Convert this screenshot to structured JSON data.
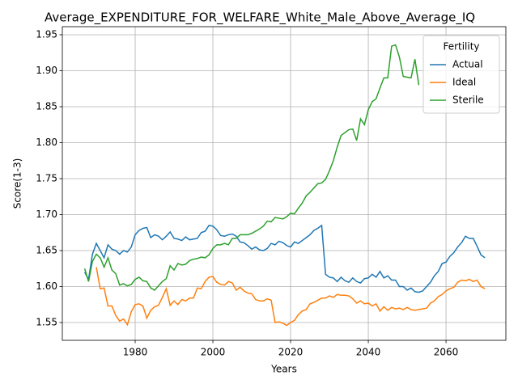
{
  "chart_data": {
    "type": "line",
    "title": "Average_EXPENDITURE_FOR_WELFARE_White_Male_Above_Average_IQ",
    "x_label": "Years",
    "y_label": "Score(1-3)",
    "x": [
      1967,
      1968,
      1969,
      1970,
      1971,
      1972,
      1973,
      1974,
      1975,
      1976,
      1977,
      1978,
      1979,
      1980,
      1981,
      1982,
      1983,
      1984,
      1985,
      1986,
      1987,
      1988,
      1989,
      1990,
      1991,
      1992,
      1993,
      1994,
      1995,
      1996,
      1997,
      1998,
      1999,
      2000,
      2001,
      2002,
      2003,
      2004,
      2005,
      2006,
      2007,
      2008,
      2009,
      2010,
      2011,
      2012,
      2013,
      2014,
      2015,
      2016,
      2017,
      2018,
      2019,
      2020,
      2021,
      2022,
      2023,
      2024,
      2025,
      2026,
      2027,
      2028,
      2029,
      2030,
      2031,
      2032,
      2033,
      2034,
      2035,
      2036,
      2037,
      2038,
      2039,
      2040,
      2041,
      2042,
      2043,
      2044,
      2045,
      2046,
      2047,
      2048,
      2049,
      2050,
      2051,
      2052,
      2053,
      2054,
      2055,
      2056,
      2057,
      2058,
      2059,
      2060,
      2061,
      2062,
      2063,
      2064,
      2065,
      2066,
      2067,
      2068,
      2069,
      2070
    ],
    "series": [
      {
        "name": "Actual",
        "color": "#1f77b4",
        "values": [
          1.62,
          1.61,
          1.645,
          1.66,
          1.65,
          1.64,
          1.658,
          1.652,
          1.65,
          1.645,
          1.65,
          1.648,
          1.655,
          1.672,
          1.678,
          1.681,
          1.682,
          1.668,
          1.672,
          1.67,
          1.665,
          1.67,
          1.676,
          1.667,
          1.666,
          1.664,
          1.669,
          1.665,
          1.666,
          1.667,
          1.675,
          1.677,
          1.685,
          1.684,
          1.679,
          1.671,
          1.67,
          1.672,
          1.673,
          1.67,
          1.662,
          1.661,
          1.657,
          1.652,
          1.655,
          1.651,
          1.65,
          1.653,
          1.66,
          1.658,
          1.663,
          1.661,
          1.657,
          1.655,
          1.662,
          1.66,
          1.664,
          1.668,
          1.672,
          1.678,
          1.681,
          1.685,
          1.617,
          1.613,
          1.612,
          1.607,
          1.613,
          1.608,
          1.606,
          1.612,
          1.607,
          1.605,
          1.611,
          1.612,
          1.617,
          1.613,
          1.621,
          1.612,
          1.615,
          1.609,
          1.609,
          1.6,
          1.6,
          1.595,
          1.598,
          1.593,
          1.592,
          1.594,
          1.6,
          1.606,
          1.615,
          1.621,
          1.632,
          1.634,
          1.642,
          1.647,
          1.655,
          1.661,
          1.67,
          1.667,
          1.667,
          1.656,
          1.644,
          1.64
        ]
      },
      {
        "name": "Ideal",
        "color": "#ff7f0e",
        "values": [
          null,
          null,
          null,
          1.627,
          1.597,
          1.598,
          1.573,
          1.573,
          1.56,
          1.552,
          1.555,
          1.547,
          1.565,
          1.575,
          1.576,
          1.573,
          1.556,
          1.567,
          1.572,
          1.574,
          1.585,
          1.597,
          1.574,
          1.58,
          1.575,
          1.582,
          1.58,
          1.584,
          1.584,
          1.598,
          1.597,
          1.607,
          1.613,
          1.614,
          1.606,
          1.603,
          1.602,
          1.607,
          1.605,
          1.595,
          1.599,
          1.594,
          1.591,
          1.59,
          1.582,
          1.58,
          1.58,
          1.583,
          1.581,
          1.55,
          1.551,
          1.549,
          1.546,
          1.55,
          1.553,
          1.561,
          1.566,
          1.568,
          1.576,
          1.578,
          1.581,
          1.584,
          1.584,
          1.587,
          1.585,
          1.589,
          1.588,
          1.588,
          1.587,
          1.583,
          1.577,
          1.58,
          1.576,
          1.577,
          1.573,
          1.576,
          1.566,
          1.572,
          1.567,
          1.571,
          1.569,
          1.57,
          1.568,
          1.571,
          1.568,
          1.567,
          1.568,
          1.569,
          1.57,
          1.577,
          1.58,
          1.586,
          1.589,
          1.594,
          1.597,
          1.599,
          1.606,
          1.609,
          1.608,
          1.61,
          1.607,
          1.609,
          1.6,
          1.597
        ]
      },
      {
        "name": "Sterile",
        "color": "#2ca02c",
        "values": [
          1.625,
          1.607,
          1.635,
          1.645,
          1.64,
          1.627,
          1.64,
          1.623,
          1.618,
          1.602,
          1.604,
          1.601,
          1.603,
          1.61,
          1.613,
          1.608,
          1.607,
          1.598,
          1.595,
          1.601,
          1.607,
          1.611,
          1.629,
          1.623,
          1.632,
          1.63,
          1.631,
          1.636,
          1.638,
          1.639,
          1.641,
          1.64,
          1.644,
          1.653,
          1.658,
          1.658,
          1.66,
          1.658,
          1.667,
          1.667,
          1.672,
          1.672,
          1.672,
          1.674,
          1.677,
          1.68,
          1.684,
          1.691,
          1.69,
          1.696,
          1.695,
          1.694,
          1.697,
          1.702,
          1.701,
          1.709,
          1.716,
          1.726,
          1.731,
          1.737,
          1.743,
          1.744,
          1.749,
          1.761,
          1.775,
          1.794,
          1.81,
          1.814,
          1.818,
          1.819,
          1.803,
          1.833,
          1.825,
          1.846,
          1.857,
          1.861,
          1.876,
          1.89,
          1.89,
          1.934,
          1.936,
          1.919,
          1.892,
          1.891,
          1.89,
          1.916,
          1.88,
          null,
          null,
          null,
          null,
          null,
          null,
          null,
          null,
          null,
          null,
          null,
          null,
          null,
          null,
          null,
          null,
          null
        ]
      }
    ],
    "xlim": [
      1961.25,
      2075.4
    ],
    "ylim": [
      1.5253,
      1.9612
    ],
    "xticks": [
      1980,
      2000,
      2020,
      2040,
      2060
    ],
    "yticks": [
      1.55,
      {
        "value": 1.6,
        "label": "1.60"
      },
      1.65,
      {
        "value": 1.7,
        "label": "1.70"
      },
      1.75,
      {
        "value": 1.8,
        "label": "1.80"
      },
      1.85,
      {
        "value": 1.9,
        "label": "1.90"
      },
      1.95
    ],
    "grid": true,
    "legend_title": "Fertility",
    "legend_position": "upper right"
  }
}
